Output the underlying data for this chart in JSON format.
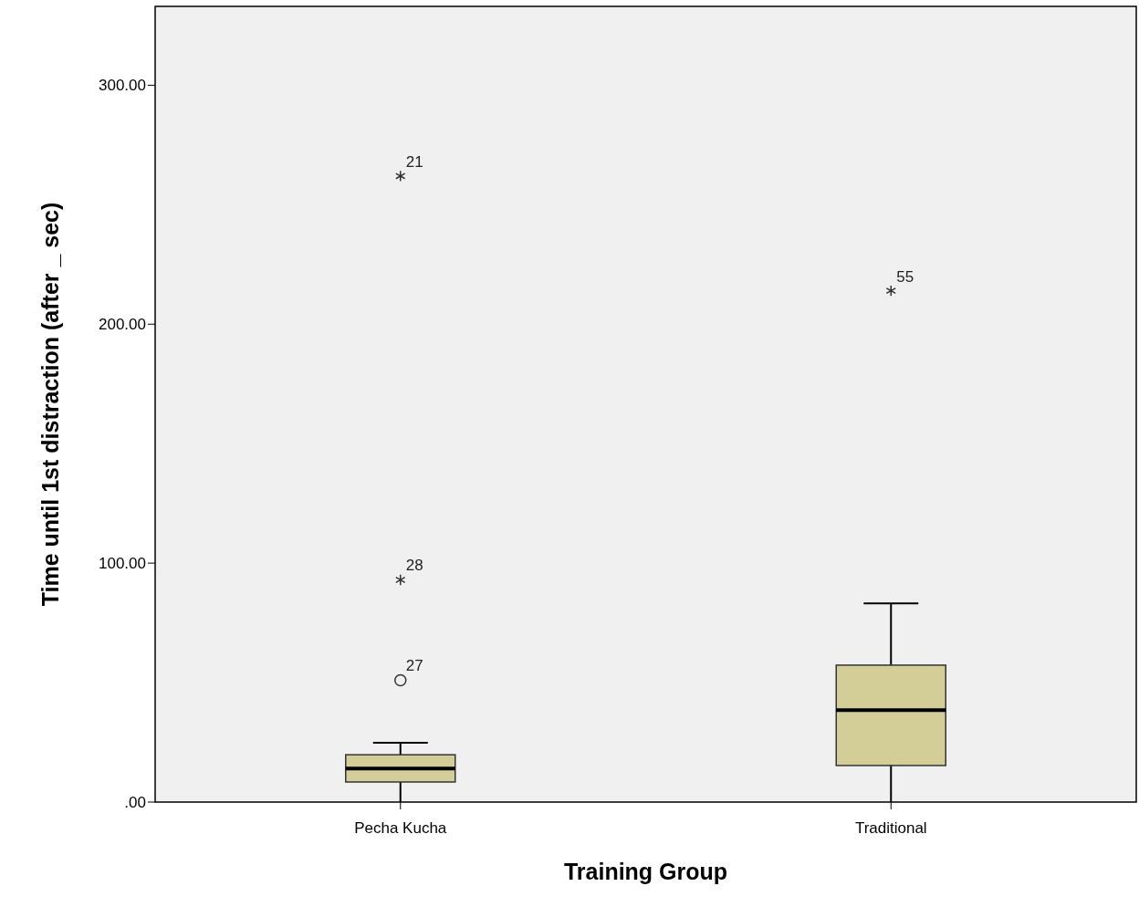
{
  "chart_data": {
    "type": "box",
    "xlabel": "Training Group",
    "ylabel": "Time until 1st distraction (after _ sec)",
    "categories": [
      "Pecha Kucha",
      "Traditional"
    ],
    "series": [
      {
        "color": "#d3ce97",
        "boxes": [
          {
            "low": 0,
            "q1": 8.4,
            "median": 14,
            "q3": 19.8,
            "high": 24.8,
            "outliers": [
              51,
              93,
              262
            ]
          },
          {
            "low": 0,
            "q1": 15.3,
            "median": 38.5,
            "q3": 57.3,
            "high": 83.2,
            "outliers": [
              214
            ]
          }
        ]
      }
    ],
    "ylim": [
      0,
      333
    ],
    "yticks": [
      {
        "value": 0,
        "label": ".00"
      },
      {
        "value": 100,
        "label": "100.00"
      },
      {
        "value": 200,
        "label": "200.00"
      },
      {
        "value": 300,
        "label": "300.00"
      }
    ],
    "annotations": [
      "27",
      "28",
      "21",
      "55"
    ],
    "grid": false
  }
}
